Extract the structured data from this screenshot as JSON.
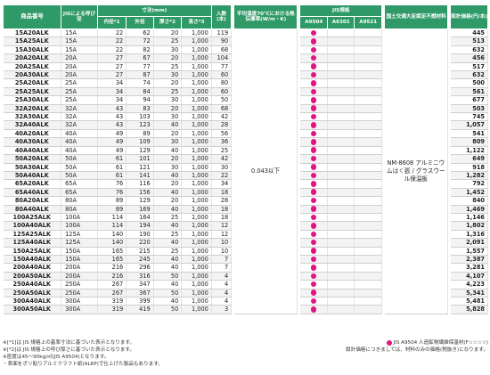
{
  "headers": {
    "code": "商品番号",
    "nominal": "JISによる呼び径",
    "dims": "寸法(mm)",
    "inner": "内径*1",
    "outer": "外径",
    "thick": "厚さ*2",
    "length": "長さ*3",
    "qty": "入数(本)",
    "thermal": "平均温度70℃における熱伝導率(W/m・K)",
    "jis": "JIS規格",
    "a9504": "A9504",
    "a6301": "A6301",
    "a9521": "A9521",
    "cert": "国土交通大臣認定不燃材料",
    "price": "設計価格(円/本)"
  },
  "thermal_value": "0.043以下",
  "cert_value": "NM-8608 アルミニウムはく張 / グラスウール保温板",
  "rows": [
    {
      "code": "15A20ALK",
      "nom": "15A",
      "inner": "22",
      "outer": "62",
      "thick": "20",
      "length": "1,000",
      "qty": "119",
      "price": "445"
    },
    {
      "code": "15A25ALK",
      "nom": "15A",
      "inner": "22",
      "outer": "72",
      "thick": "25",
      "length": "1,000",
      "qty": "90",
      "price": "513"
    },
    {
      "code": "15A30ALK",
      "nom": "15A",
      "inner": "22",
      "outer": "82",
      "thick": "30",
      "length": "1,000",
      "qty": "68",
      "price": "632"
    },
    {
      "code": "20A20ALK",
      "nom": "20A",
      "inner": "27",
      "outer": "67",
      "thick": "20",
      "length": "1,000",
      "qty": "104",
      "price": "456"
    },
    {
      "code": "20A25ALK",
      "nom": "20A",
      "inner": "27",
      "outer": "77",
      "thick": "25",
      "length": "1,000",
      "qty": "77",
      "price": "517"
    },
    {
      "code": "20A30ALK",
      "nom": "20A",
      "inner": "27",
      "outer": "87",
      "thick": "30",
      "length": "1,000",
      "qty": "60",
      "price": "632"
    },
    {
      "code": "25A20ALK",
      "nom": "25A",
      "inner": "34",
      "outer": "74",
      "thick": "20",
      "length": "1,000",
      "qty": "80",
      "price": "500"
    },
    {
      "code": "25A25ALK",
      "nom": "25A",
      "inner": "34",
      "outer": "84",
      "thick": "25",
      "length": "1,000",
      "qty": "60",
      "price": "561"
    },
    {
      "code": "25A30ALK",
      "nom": "25A",
      "inner": "34",
      "outer": "94",
      "thick": "30",
      "length": "1,000",
      "qty": "50",
      "price": "677"
    },
    {
      "code": "32A20ALK",
      "nom": "32A",
      "inner": "43",
      "outer": "83",
      "thick": "20",
      "length": "1,000",
      "qty": "68",
      "price": "503"
    },
    {
      "code": "32A30ALK",
      "nom": "32A",
      "inner": "43",
      "outer": "103",
      "thick": "30",
      "length": "1,000",
      "qty": "42",
      "price": "745"
    },
    {
      "code": "32A40ALK",
      "nom": "32A",
      "inner": "43",
      "outer": "123",
      "thick": "40",
      "length": "1,000",
      "qty": "28",
      "price": "1,057"
    },
    {
      "code": "40A20ALK",
      "nom": "40A",
      "inner": "49",
      "outer": "89",
      "thick": "20",
      "length": "1,000",
      "qty": "56",
      "price": "541"
    },
    {
      "code": "40A30ALK",
      "nom": "40A",
      "inner": "49",
      "outer": "109",
      "thick": "30",
      "length": "1,000",
      "qty": "36",
      "price": "809"
    },
    {
      "code": "40A40ALK",
      "nom": "40A",
      "inner": "49",
      "outer": "129",
      "thick": "40",
      "length": "1,000",
      "qty": "25",
      "price": "1,122"
    },
    {
      "code": "50A20ALK",
      "nom": "50A",
      "inner": "61",
      "outer": "101",
      "thick": "20",
      "length": "1,000",
      "qty": "42",
      "price": "649"
    },
    {
      "code": "50A30ALK",
      "nom": "50A",
      "inner": "61",
      "outer": "121",
      "thick": "30",
      "length": "1,000",
      "qty": "30",
      "price": "918"
    },
    {
      "code": "50A40ALK",
      "nom": "50A",
      "inner": "61",
      "outer": "141",
      "thick": "40",
      "length": "1,000",
      "qty": "22",
      "price": "1,282"
    },
    {
      "code": "65A20ALK",
      "nom": "65A",
      "inner": "76",
      "outer": "116",
      "thick": "20",
      "length": "1,000",
      "qty": "34",
      "price": "792"
    },
    {
      "code": "65A40ALK",
      "nom": "65A",
      "inner": "76",
      "outer": "156",
      "thick": "40",
      "length": "1,000",
      "qty": "18",
      "price": "1,452"
    },
    {
      "code": "80A20ALK",
      "nom": "80A",
      "inner": "89",
      "outer": "129",
      "thick": "20",
      "length": "1,000",
      "qty": "28",
      "price": "840"
    },
    {
      "code": "80A40ALK",
      "nom": "80A",
      "inner": "89",
      "outer": "169",
      "thick": "40",
      "length": "1,000",
      "qty": "18",
      "price": "1,469"
    },
    {
      "code": "100A25ALK",
      "nom": "100A",
      "inner": "114",
      "outer": "164",
      "thick": "25",
      "length": "1,000",
      "qty": "18",
      "price": "1,146"
    },
    {
      "code": "100A40ALK",
      "nom": "100A",
      "inner": "114",
      "outer": "194",
      "thick": "40",
      "length": "1,000",
      "qty": "12",
      "price": "1,802"
    },
    {
      "code": "125A25ALK",
      "nom": "125A",
      "inner": "140",
      "outer": "190",
      "thick": "25",
      "length": "1,000",
      "qty": "12",
      "price": "1,316"
    },
    {
      "code": "125A40ALK",
      "nom": "125A",
      "inner": "140",
      "outer": "220",
      "thick": "40",
      "length": "1,000",
      "qty": "10",
      "price": "2,091"
    },
    {
      "code": "150A25ALK",
      "nom": "150A",
      "inner": "165",
      "outer": "215",
      "thick": "25",
      "length": "1,000",
      "qty": "10",
      "price": "1,557"
    },
    {
      "code": "150A40ALK",
      "nom": "150A",
      "inner": "165",
      "outer": "245",
      "thick": "40",
      "length": "1,000",
      "qty": "7",
      "price": "2,387"
    },
    {
      "code": "200A40ALK",
      "nom": "200A",
      "inner": "216",
      "outer": "296",
      "thick": "40",
      "length": "1,000",
      "qty": "7",
      "price": "3,281"
    },
    {
      "code": "200A50ALK",
      "nom": "200A",
      "inner": "216",
      "outer": "316",
      "thick": "50",
      "length": "1,000",
      "qty": "4",
      "price": "4,107"
    },
    {
      "code": "250A40ALK",
      "nom": "250A",
      "inner": "267",
      "outer": "347",
      "thick": "40",
      "length": "1,000",
      "qty": "4",
      "price": "4,223"
    },
    {
      "code": "250A50ALK",
      "nom": "250A",
      "inner": "267",
      "outer": "367",
      "thick": "50",
      "length": "1,000",
      "qty": "4",
      "price": "5,341"
    },
    {
      "code": "300A40ALK",
      "nom": "300A",
      "inner": "319",
      "outer": "399",
      "thick": "40",
      "length": "1,000",
      "qty": "4",
      "price": "5,481"
    },
    {
      "code": "300A50ALK",
      "nom": "300A",
      "inner": "319",
      "outer": "419",
      "thick": "50",
      "length": "1,000",
      "qty": "3",
      "price": "5,828"
    }
  ],
  "notes": [
    "※[*1]は JIS 規格上の基準寸法に基づいた表示となります。",
    "※[*2]は JIS 規格上の呼び厚さに基づいた表示となります。",
    "※密度は45〜90kg/㎥(JIS A9504)となります。",
    "・表面をポリ貼りアルミクラフト紙(ALKP)で仕上げた製品もあります。"
  ],
  "legend": "JIS A9504 人造鉱物繊維保温材(F☆☆☆☆)",
  "legend_note": "設計価格につきましては、材料のみの価格(税抜き)となります。",
  "colors": {
    "header": "#2f9a67",
    "dot": "#e5137f"
  }
}
